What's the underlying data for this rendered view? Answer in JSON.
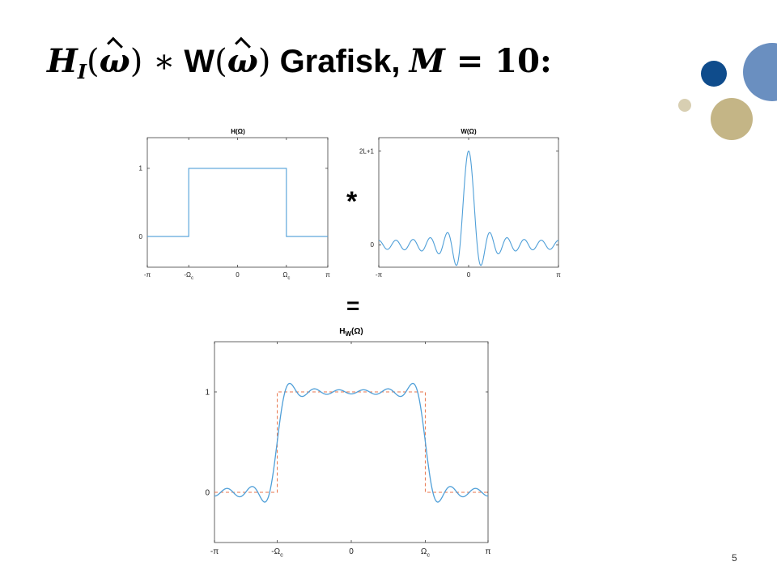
{
  "slide": {
    "title_math_prefix": "H",
    "title_sub": "I",
    "title_omega": "ω",
    "title_conv": "∗",
    "title_W": "W",
    "title_text": " Grafisk, ",
    "title_M": "M",
    "title_eq": " = 10:",
    "conv_symbol": "*",
    "equals_symbol": "=",
    "page_number": "5",
    "colors": {
      "accent_dark_blue": "#0f4c8c",
      "accent_light_blue": "#6a8fc0",
      "accent_tan": "#c4b586",
      "accent_light_tan": "#d8cfb2",
      "curve_blue": "#4f9fd8",
      "dashed_orange": "#e8764c"
    }
  },
  "chart_data": [
    {
      "type": "line",
      "title": "H(Ω)",
      "x_tick_labels": [
        "-π",
        "-Ωc",
        "0",
        "Ωc",
        "π"
      ],
      "y_tick_labels": [
        "0",
        "1"
      ],
      "xlim": [
        -3.1416,
        3.1416
      ],
      "ylim": [
        -0.45,
        1.45
      ],
      "omega_c": 1.7,
      "series": [
        {
          "style": "solid",
          "description_values": "ideal lowpass: 1 for |Ω|<Ωc, 0 otherwise"
        }
      ]
    },
    {
      "type": "line",
      "title": "W(Ω)",
      "x_tick_labels": [
        "-π",
        "0",
        "π"
      ],
      "y_tick_labels": [
        "0",
        "2L+1"
      ],
      "xlim": [
        -3.1416,
        3.1416
      ],
      "ylim": [
        -5,
        24
      ],
      "L": 10,
      "series": [
        {
          "style": "solid",
          "description_values": "Dirichlet kernel sin((2L+1)Ω/2)/sin(Ω/2)"
        }
      ]
    },
    {
      "type": "line",
      "title": "H_W(Ω)",
      "title_main": "H",
      "title_sub": "W",
      "title_suffix": "(Ω)",
      "x_tick_labels": [
        "-π",
        "-Ωc",
        "0",
        "Ωc",
        "π"
      ],
      "y_tick_labels": [
        "0",
        "1"
      ],
      "xlim": [
        -3.1416,
        3.1416
      ],
      "ylim": [
        -0.5,
        1.5
      ],
      "omega_c": 1.7,
      "M": 10,
      "series": [
        {
          "style": "solid",
          "description_values": "windowed response with Gibbs ripples"
        },
        {
          "style": "dashed",
          "description_values": "ideal lowpass reference"
        }
      ]
    }
  ]
}
